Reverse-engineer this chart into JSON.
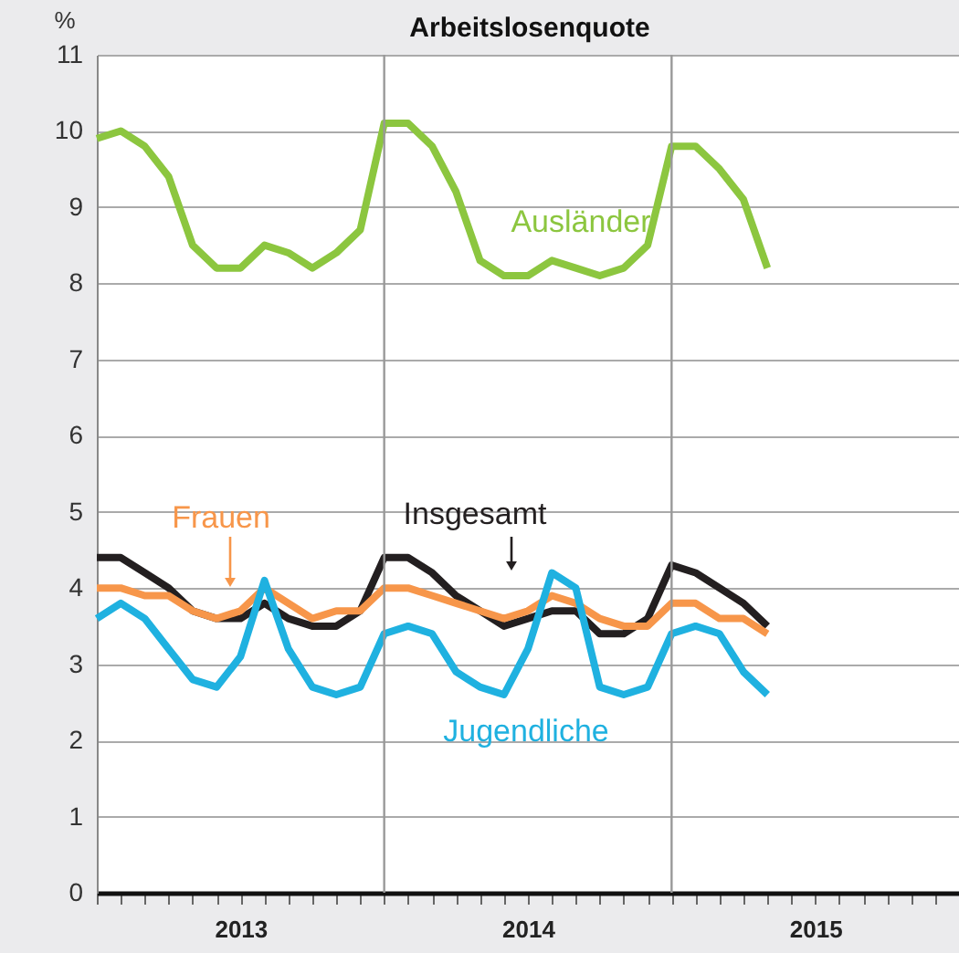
{
  "chart_data": {
    "type": "line",
    "title": "Arbeitslosenquote",
    "ylabel": "%",
    "x": [
      "2013-01",
      "2013-02",
      "2013-03",
      "2013-04",
      "2013-05",
      "2013-06",
      "2013-07",
      "2013-08",
      "2013-09",
      "2013-10",
      "2013-11",
      "2013-12",
      "2014-01",
      "2014-02",
      "2014-03",
      "2014-04",
      "2014-05",
      "2014-06",
      "2014-07",
      "2014-08",
      "2014-09",
      "2014-10",
      "2014-11",
      "2014-12",
      "2015-01",
      "2015-02",
      "2015-03",
      "2015-04",
      "2015-05"
    ],
    "series": [
      {
        "name": "Ausländer",
        "color": "#8cc63f",
        "values": [
          9.9,
          10.0,
          9.8,
          9.4,
          8.5,
          8.2,
          8.2,
          8.5,
          8.4,
          8.2,
          8.4,
          8.7,
          10.1,
          10.1,
          9.8,
          9.2,
          8.3,
          8.1,
          8.1,
          8.3,
          8.2,
          8.1,
          8.2,
          8.5,
          9.8,
          9.8,
          9.5,
          9.1,
          8.2
        ]
      },
      {
        "name": "Insgesamt",
        "color": "#231f20",
        "values": [
          4.4,
          4.4,
          4.2,
          4.0,
          3.7,
          3.6,
          3.6,
          3.8,
          3.6,
          3.5,
          3.5,
          3.7,
          4.4,
          4.4,
          4.2,
          3.9,
          3.7,
          3.5,
          3.6,
          3.7,
          3.7,
          3.4,
          3.4,
          3.6,
          4.3,
          4.2,
          4.0,
          3.8,
          3.5
        ]
      },
      {
        "name": "Frauen",
        "color": "#f7964a",
        "values": [
          4.0,
          4.0,
          3.9,
          3.9,
          3.7,
          3.6,
          3.7,
          4.0,
          3.8,
          3.6,
          3.7,
          3.7,
          4.0,
          4.0,
          3.9,
          3.8,
          3.7,
          3.6,
          3.7,
          3.9,
          3.8,
          3.6,
          3.5,
          3.5,
          3.8,
          3.8,
          3.6,
          3.6,
          3.4
        ]
      },
      {
        "name": "Jugendliche",
        "color": "#1fb1e0",
        "values": [
          3.6,
          3.8,
          3.6,
          3.2,
          2.8,
          2.7,
          3.1,
          4.1,
          3.2,
          2.7,
          2.6,
          2.7,
          3.4,
          3.5,
          3.4,
          2.9,
          2.7,
          2.6,
          3.2,
          4.2,
          4.0,
          2.7,
          2.6,
          2.7,
          3.4,
          3.5,
          3.4,
          2.9,
          2.6
        ]
      }
    ],
    "xlim": [
      "2013-01",
      "2016-01"
    ],
    "xticks": [
      {
        "value": "2013-01",
        "label": null
      },
      {
        "value": "2013-02",
        "label": null
      },
      {
        "value": "2013-03",
        "label": null
      },
      {
        "value": "2013-04",
        "label": null
      },
      {
        "value": "2013-05",
        "label": null
      },
      {
        "value": "2013-06",
        "label": null
      },
      {
        "value": "2013-07",
        "label": "2013"
      },
      {
        "value": "2013-08",
        "label": null
      },
      {
        "value": "2013-09",
        "label": null
      },
      {
        "value": "2013-10",
        "label": null
      },
      {
        "value": "2013-11",
        "label": null
      },
      {
        "value": "2013-12",
        "label": null
      },
      {
        "value": "2014-01",
        "label": null
      },
      {
        "value": "2014-02",
        "label": null
      },
      {
        "value": "2014-03",
        "label": null
      },
      {
        "value": "2014-04",
        "label": null
      },
      {
        "value": "2014-05",
        "label": null
      },
      {
        "value": "2014-06",
        "label": null
      },
      {
        "value": "2014-07",
        "label": "2014"
      },
      {
        "value": "2014-08",
        "label": null
      },
      {
        "value": "2014-09",
        "label": null
      },
      {
        "value": "2014-10",
        "label": null
      },
      {
        "value": "2014-11",
        "label": null
      },
      {
        "value": "2014-12",
        "label": null
      },
      {
        "value": "2015-01",
        "label": null
      },
      {
        "value": "2015-02",
        "label": null
      },
      {
        "value": "2015-03",
        "label": null
      },
      {
        "value": "2015-04",
        "label": null
      },
      {
        "value": "2015-05",
        "label": null
      },
      {
        "value": "2015-06",
        "label": null
      },
      {
        "value": "2015-07",
        "label": "2015"
      },
      {
        "value": "2015-08",
        "label": null
      },
      {
        "value": "2015-09",
        "label": null
      },
      {
        "value": "2015-10",
        "label": null
      },
      {
        "value": "2015-11",
        "label": null
      },
      {
        "value": "2015-12",
        "label": null
      },
      {
        "value": "2016-01",
        "label": null
      }
    ],
    "ylim": [
      0,
      11
    ],
    "yticks": [
      0,
      1,
      2,
      3,
      4,
      5,
      6,
      7,
      8,
      9,
      10,
      11
    ],
    "ref_lines": [
      {
        "axis": "x",
        "value": "2014-01",
        "color": "#999999"
      },
      {
        "axis": "x",
        "value": "2015-01",
        "color": "#999999"
      }
    ],
    "grid": "y",
    "legend": false,
    "marker": "none",
    "line_style": "solid"
  }
}
